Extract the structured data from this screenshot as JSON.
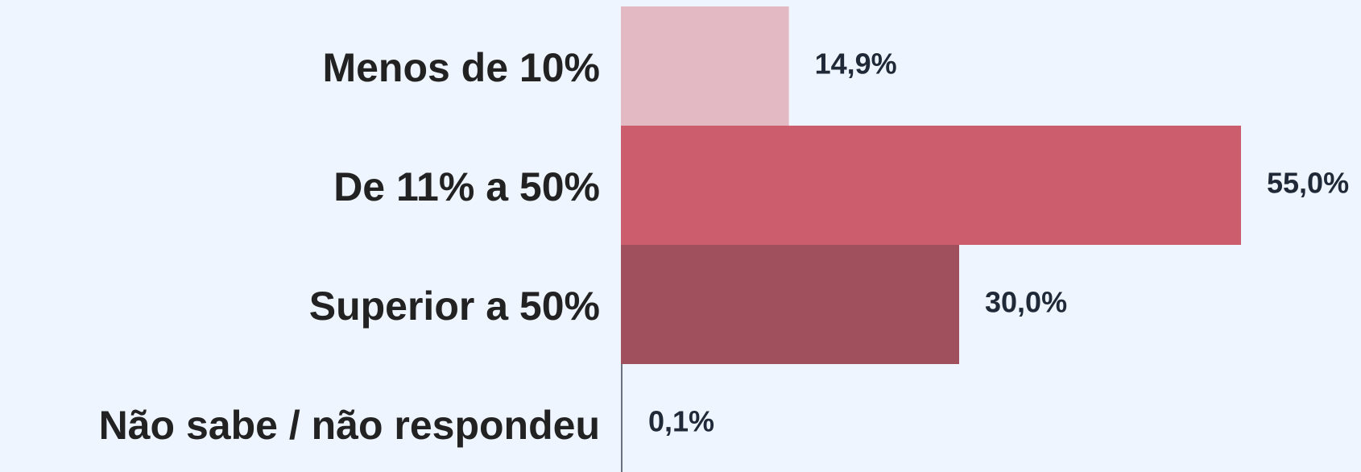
{
  "chart_data": {
    "type": "bar",
    "orientation": "horizontal",
    "categories": [
      "Menos de 10%",
      "De 11% a 50%",
      "Superior a 50%",
      "Não sabe / não respondeu"
    ],
    "values": [
      14.9,
      55.0,
      30.0,
      0.1
    ],
    "value_labels": [
      "14,9%",
      "55,0%",
      "30,0%",
      "0,1%"
    ],
    "colors": [
      "#e3b9c4",
      "#cc5d6d",
      "#a0505c",
      "#6b7280"
    ]
  }
}
